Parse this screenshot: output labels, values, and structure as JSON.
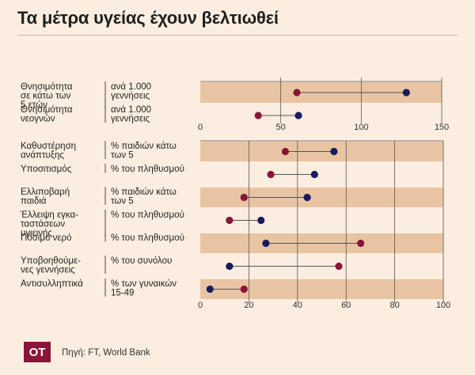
{
  "header": {
    "title": "Τα μέτρα υγείας έχουν βελτιωθεί"
  },
  "footer": {
    "logo": "OT",
    "source": "Πηγή: FT, World Bank"
  },
  "colors": {
    "marker_a": "#8a1538",
    "marker_b": "#1a1a5e",
    "band": "#e9c4a3",
    "connector": "#555555",
    "gridline": "#555555"
  },
  "chart_data": [
    {
      "type": "dumbbell",
      "title": "Τα μέτρα υγείας έχουν βελτιωθεί",
      "xlim": [
        0,
        150
      ],
      "xticks": [
        0,
        50,
        100,
        150
      ],
      "rows": [
        {
          "label": "Θνησιμότητα σε κάτω των 5 ετών",
          "unit": "ανά 1.000 γεννήσεις",
          "a": 60,
          "b": 128,
          "banded": true
        },
        {
          "label": "Θνησιμότητα νεογνών",
          "unit": "ανά 1.000 γεννήσεις",
          "a": 36,
          "b": 61,
          "banded": false
        }
      ]
    },
    {
      "type": "dumbbell",
      "xlim": [
        0,
        100
      ],
      "xticks": [
        0,
        20,
        40,
        60,
        80,
        100
      ],
      "rows": [
        {
          "label": "Καθυστέρηση ανάπτυξης",
          "unit": "% παιδιών κάτω των 5",
          "a": 35,
          "b": 55,
          "banded": true
        },
        {
          "label": "Υποσιτισμός",
          "unit": "% του πληθυσμού",
          "a": 29,
          "b": 47,
          "banded": false
        },
        {
          "label": "Ελλιποβαρή παιδιά",
          "unit": "% παιδιών κάτω των 5",
          "a": 18,
          "b": 44,
          "banded": true
        },
        {
          "label": "Έλλειψη εγκαταστάσεων υγιεινής",
          "unit": "% του πληθυσμού",
          "a": 12,
          "b": 25,
          "banded": false
        },
        {
          "label": "Πόσιμο νερό",
          "unit": "% του πληθυσμού",
          "a": 66,
          "b": 27,
          "banded": true
        },
        {
          "label": "Υποβοηθούμενες γεννήσεις",
          "unit": "% του συνόλου",
          "a": 57,
          "b": 12,
          "banded": false
        },
        {
          "label": "Αντισυλληπτικά",
          "unit": "% των γυναικών 15-49",
          "a": 18,
          "b": 4,
          "banded": true
        }
      ]
    }
  ],
  "display": {
    "panel1": [
      {
        "label_lines": [
          "Θνησιμότητα",
          "σε κάτω των",
          "5 ετών"
        ],
        "unit_lines": [
          "ανά 1.000",
          "γεννήσεις"
        ]
      },
      {
        "label_lines": [
          "Θνησιμότητα",
          "νεογνών"
        ],
        "unit_lines": [
          "ανά 1.000",
          "γεννήσεις"
        ]
      }
    ],
    "panel2": [
      {
        "label_lines": [
          "Καθυστέρηση",
          "ανάπτυξης"
        ],
        "unit_lines": [
          "% παιδιών κάτω",
          "των 5"
        ]
      },
      {
        "label_lines": [
          "Υποσιτισμός"
        ],
        "unit_lines": [
          "% του πληθυσμού"
        ]
      },
      {
        "label_lines": [
          "Ελλιποβαρή",
          "παιδιά"
        ],
        "unit_lines": [
          "% παιδιών κάτω",
          "των 5"
        ]
      },
      {
        "label_lines": [
          "Έλλειψη εγκα-",
          "ταστάσεων",
          "υγιεινής"
        ],
        "unit_lines": [
          "% του πληθυσμού"
        ]
      },
      {
        "label_lines": [
          "Πόσιμο νερό"
        ],
        "unit_lines": [
          "% του πληθυσμού"
        ]
      },
      {
        "label_lines": [
          "Υποβοηθούμε-",
          "νες γεννήσεις"
        ],
        "unit_lines": [
          "% του συνόλου"
        ]
      },
      {
        "label_lines": [
          "Αντισυλληπτικά"
        ],
        "unit_lines": [
          "% των γυναικών",
          "15-49"
        ]
      }
    ]
  }
}
